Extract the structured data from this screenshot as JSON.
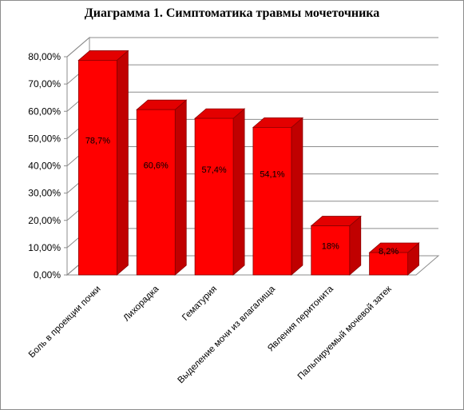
{
  "chart_data": {
    "type": "bar",
    "title": "Диаграмма 1. Симптоматика травмы мочеточника",
    "categories": [
      "Боль в проекции почки",
      "Лихорадка",
      "Гематурия",
      "Выделение мочи из влагалища",
      "Явления перитонита",
      "Пальпируемый мочевой затек"
    ],
    "values": [
      78.7,
      60.6,
      57.4,
      54.1,
      18,
      8.2
    ],
    "data_labels": [
      "78,7%",
      "60,6%",
      "57,4%",
      "54,1%",
      "18%",
      "8,2%"
    ],
    "y_ticks": [
      0,
      10,
      20,
      30,
      40,
      50,
      60,
      70,
      80
    ],
    "y_tick_labels": [
      "0,00%",
      "10,00%",
      "20,00%",
      "30,00%",
      "40,00%",
      "50,00%",
      "60,00%",
      "70,00%",
      "80,00%"
    ],
    "ylim": [
      0,
      80
    ],
    "grid": true,
    "legend": "none",
    "bar_color": "#ff0000",
    "bar_side_color": "#c00000",
    "bar_top_color": "#e30000"
  }
}
